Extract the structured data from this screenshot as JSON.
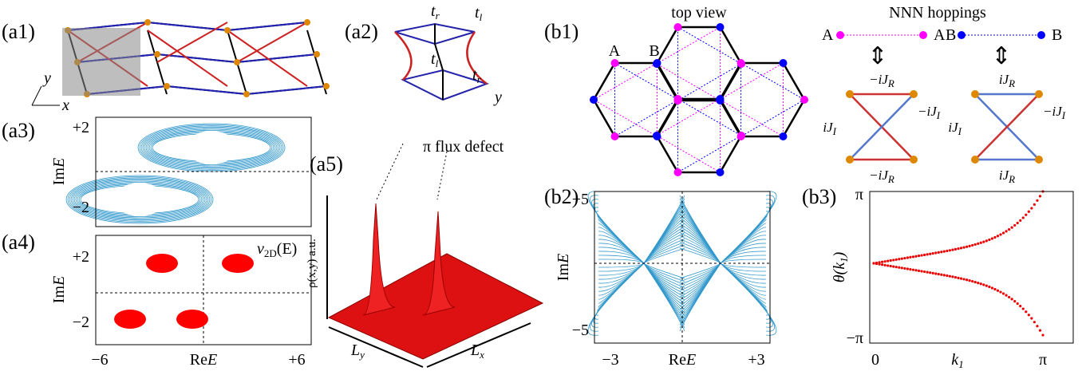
{
  "a1": {
    "label": "(a1)",
    "y_axis": "y",
    "x_axis": "x"
  },
  "a2": {
    "label": "(a2)",
    "hops": [
      [
        "t",
        "r"
      ],
      [
        "t",
        "l"
      ],
      [
        "t",
        "l"
      ],
      [
        "t",
        "r"
      ]
    ],
    "axis": "y"
  },
  "a3": {
    "label": "(a3)",
    "yticks": [
      "+2",
      "−2"
    ],
    "ylabel": [
      "Im",
      "E"
    ]
  },
  "a4": {
    "label": "(a4)",
    "yticks": [
      "+2",
      "−2"
    ],
    "xticks": [
      "−6",
      "+6"
    ],
    "xlabel": [
      "Re",
      "E"
    ],
    "ylabel": [
      "Im",
      "E"
    ],
    "annotation": [
      "ν",
      "2D",
      "(E)"
    ]
  },
  "a5": {
    "label": "(a5)",
    "annotation": "π flux defect",
    "zlabel": "ρ(x,y) a.u.",
    "axes": [
      [
        "L",
        "y"
      ],
      [
        "L",
        "x"
      ]
    ]
  },
  "b1": {
    "label": "(b1)",
    "title": "top view",
    "sites": [
      "A",
      "B"
    ],
    "nnn_title": "NNN hoppings",
    "pairs": [
      [
        "A",
        "A"
      ],
      [
        "B",
        "B"
      ]
    ],
    "left_box": [
      [
        "−i",
        "J",
        "R"
      ],
      [
        "i",
        "J",
        "I"
      ],
      [
        "−i",
        "J",
        "I"
      ],
      [
        "−i",
        "J",
        "R"
      ]
    ],
    "right_box": [
      [
        "i",
        "J",
        "R"
      ],
      [
        "i",
        "J",
        "I"
      ],
      [
        "−i",
        "J",
        "I"
      ],
      [
        "i",
        "J",
        "R"
      ]
    ]
  },
  "b2": {
    "label": "(b2)",
    "yticks": [
      "+5",
      "−5"
    ],
    "xticks": [
      "−3",
      "+3"
    ],
    "xlabel": [
      "Re",
      "E"
    ],
    "ylabel": [
      "Im",
      "E"
    ]
  },
  "b3": {
    "label": "(b3)",
    "yticks": [
      "π",
      "−π"
    ],
    "xticks": [
      "0",
      "π"
    ],
    "xlabel": [
      "k",
      "1"
    ],
    "ylabel": [
      "θ(k",
      "1",
      ")"
    ]
  }
}
